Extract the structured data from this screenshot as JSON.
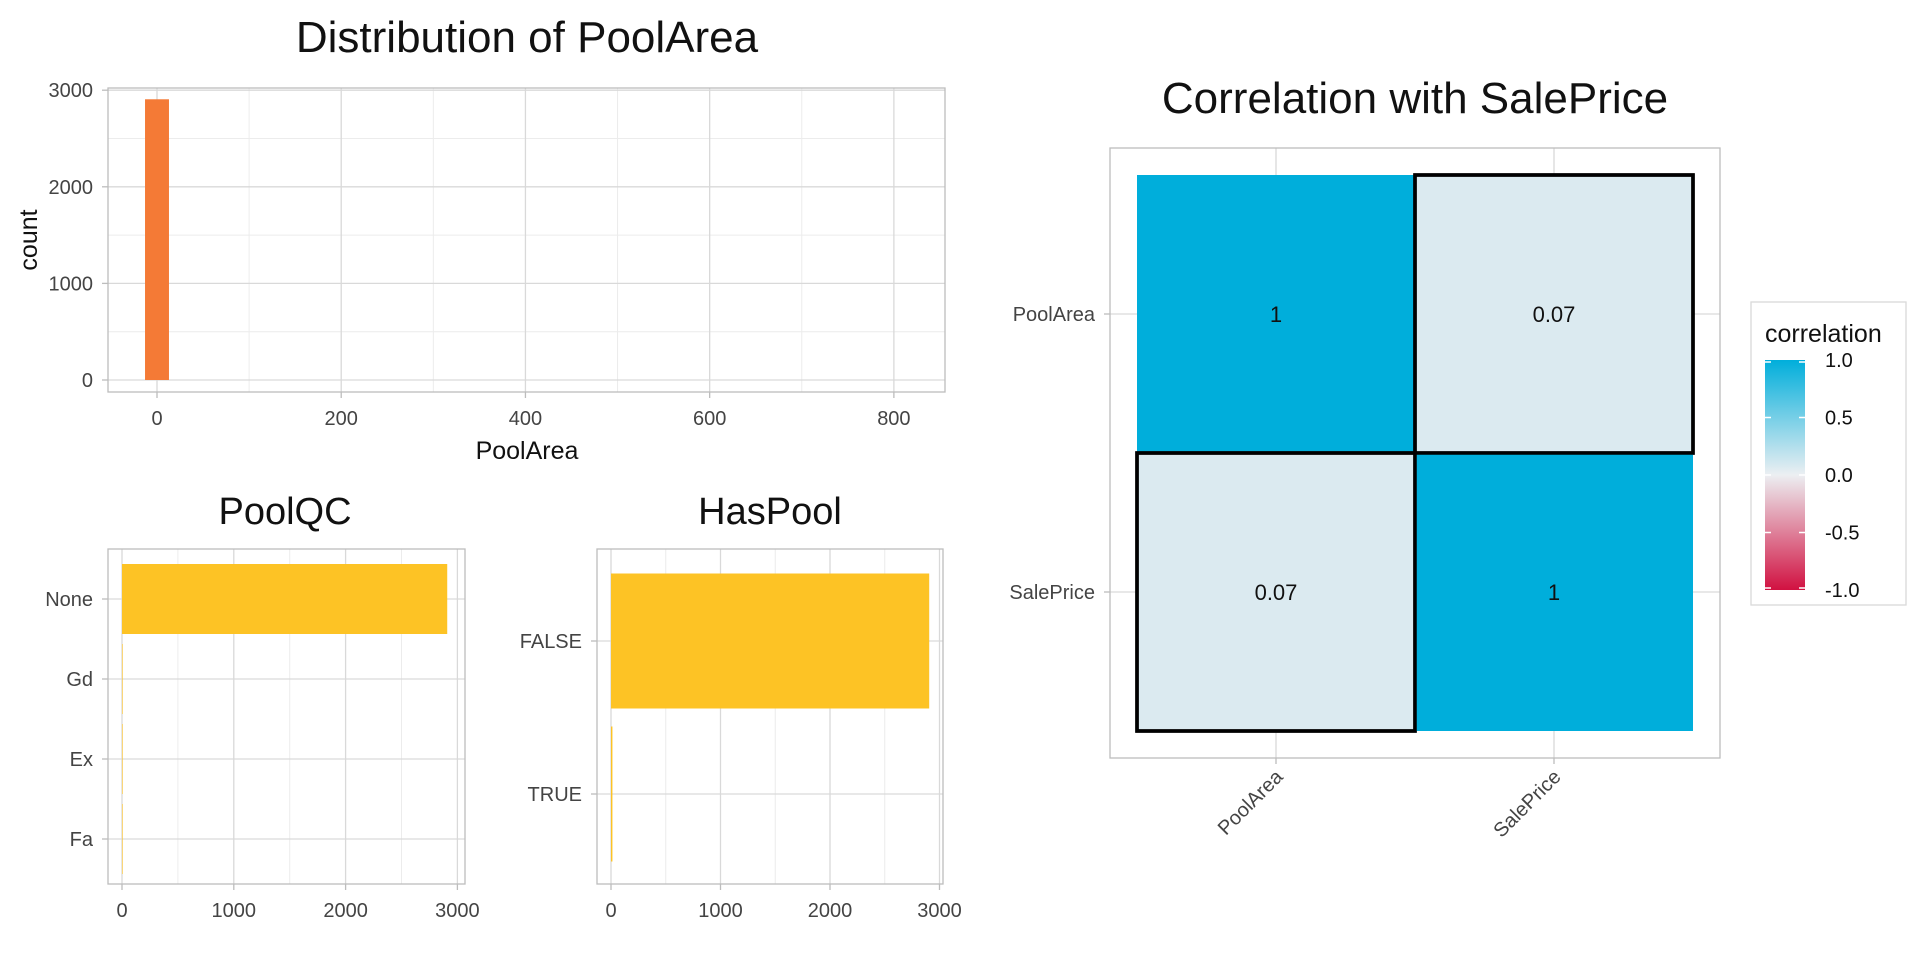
{
  "chart_data": [
    {
      "type": "bar",
      "title": "Distribution of PoolArea",
      "xlabel": "PoolArea",
      "ylabel": "count",
      "xlim": [
        -50,
        850
      ],
      "ylim": [
        0,
        3000
      ],
      "x_ticks": [
        "0",
        "200",
        "400",
        "600",
        "800"
      ],
      "y_ticks": [
        "0",
        "1000",
        "2000",
        "3000"
      ],
      "bins": [
        {
          "x_min": -13,
          "x_max": 13,
          "count": 2906
        }
      ],
      "color": "#F47A36",
      "grid": true
    },
    {
      "type": "bar",
      "orientation": "horizontal",
      "title": "PoolQC",
      "categories": [
        "None",
        "Gd",
        "Ex",
        "Fa"
      ],
      "values": [
        2909,
        4,
        4,
        2
      ],
      "xlim": [
        0,
        3000
      ],
      "x_ticks": [
        "0",
        "1000",
        "2000",
        "3000"
      ],
      "color": "#FDC325",
      "grid": true
    },
    {
      "type": "bar",
      "orientation": "horizontal",
      "title": "HasPool",
      "categories": [
        "FALSE",
        "TRUE"
      ],
      "values": [
        2906,
        13
      ],
      "xlim": [
        0,
        3000
      ],
      "x_ticks": [
        "0",
        "1000",
        "2000",
        "3000"
      ],
      "color": "#FDC325",
      "grid": true
    },
    {
      "type": "heatmap",
      "title": "Correlation with SalePrice",
      "x_categories": [
        "PoolArea",
        "SalePrice"
      ],
      "y_categories": [
        "PoolArea",
        "SalePrice"
      ],
      "cells": [
        {
          "x": "PoolArea",
          "y": "PoolArea",
          "value": 1,
          "label": "1"
        },
        {
          "x": "SalePrice",
          "y": "PoolArea",
          "value": 0.07,
          "label": "0.07"
        },
        {
          "x": "PoolArea",
          "y": "SalePrice",
          "value": 0.07,
          "label": "0.07"
        },
        {
          "x": "SalePrice",
          "y": "SalePrice",
          "value": 1,
          "label": "1"
        }
      ],
      "legend": {
        "title": "correlation",
        "ticks": [
          "1.0",
          "0.5",
          "0.0",
          "-0.5",
          "-1.0"
        ],
        "range": [
          -1,
          1
        ],
        "placement": "right"
      },
      "colors": {
        "high": "#00AEDB",
        "mid": "#ECEFF2",
        "low": "#D11141"
      }
    }
  ]
}
